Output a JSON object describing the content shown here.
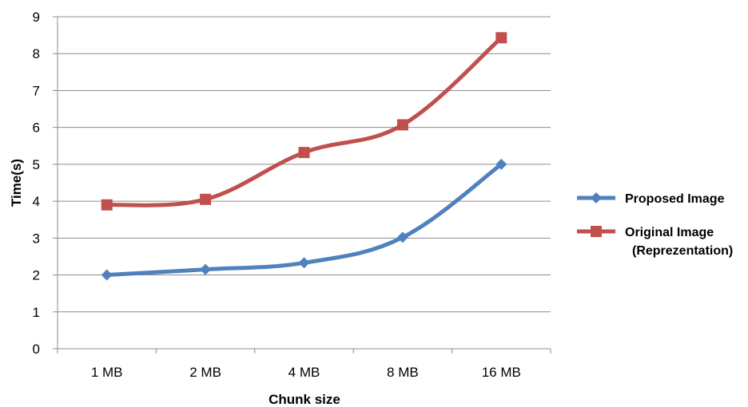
{
  "chart_data": {
    "type": "line",
    "title": "",
    "xlabel": "Chunk size",
    "ylabel": "Time(s)",
    "categories": [
      "1 MB",
      "2 MB",
      "4 MB",
      "8 MB",
      "16 MB"
    ],
    "ylim": [
      0,
      9
    ],
    "yticks": [
      "0",
      "1",
      "2",
      "3",
      "4",
      "5",
      "6",
      "7",
      "8",
      "9"
    ],
    "grid": "horizontal",
    "legend_position": "right",
    "series": [
      {
        "name": "Proposed Image",
        "values": [
          2.0,
          2.15,
          2.33,
          3.02,
          5.0
        ],
        "color": "#4F81BD",
        "marker": "diamond"
      },
      {
        "name_line1": "Original Image",
        "name_line2": "(Reprezentation)",
        "values": [
          3.9,
          4.05,
          5.32,
          6.07,
          8.43
        ],
        "color": "#C0504D",
        "marker": "square"
      }
    ]
  }
}
